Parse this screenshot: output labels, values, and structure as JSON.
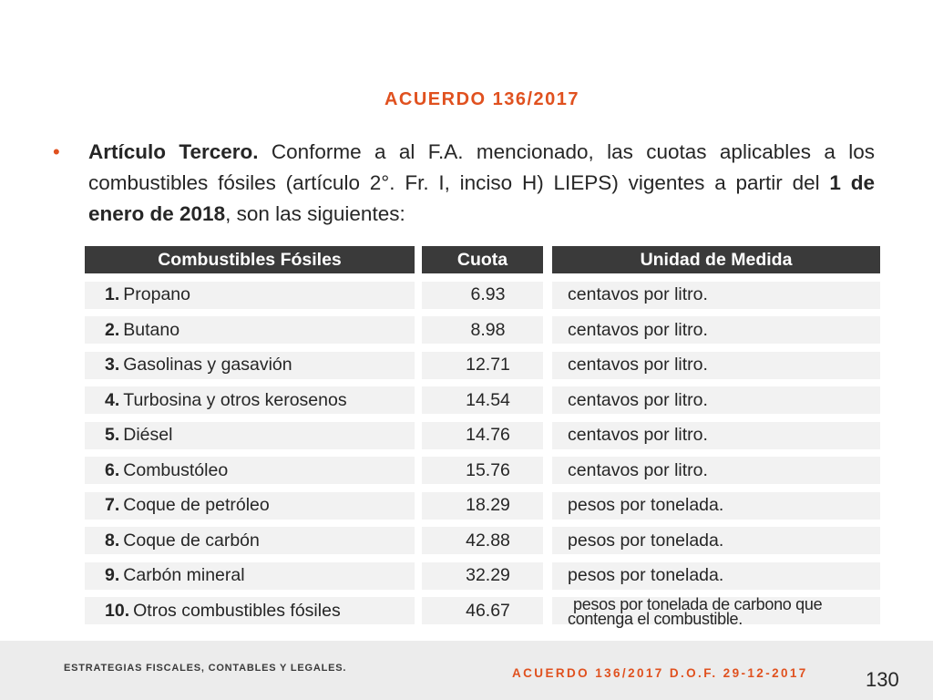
{
  "slide": {
    "title": "ACUERDO 136/2017",
    "bullet": {
      "lead_bold": "Artículo Tercero.",
      "text_1": " Conforme a al F.A. mencionado, las cuotas aplicables a los combustibles fósiles (artículo 2°. Fr. I, inciso H) LIEPS) vigentes a partir del ",
      "date_bold": "1 de enero de 2018",
      "text_2": ", son las siguientes:"
    }
  },
  "table": {
    "headers": [
      "Combustibles Fósiles",
      "Cuota",
      "Unidad de Medida"
    ],
    "rows": [
      {
        "num": "1.",
        "fuel": "Propano",
        "cuota": "6.93",
        "unidad": "centavos por litro."
      },
      {
        "num": "2.",
        "fuel": "Butano",
        "cuota": "8.98",
        "unidad": "centavos por litro."
      },
      {
        "num": "3.",
        "fuel": "Gasolinas y gasavión",
        "cuota": "12.71",
        "unidad": "centavos por litro."
      },
      {
        "num": "4.",
        "fuel": "Turbosina y otros kerosenos",
        "cuota": "14.54",
        "unidad": "centavos por litro."
      },
      {
        "num": "5.",
        "fuel": "Diésel",
        "cuota": "14.76",
        "unidad": "centavos por litro."
      },
      {
        "num": "6.",
        "fuel": "Combustóleo",
        "cuota": "15.76",
        "unidad": "centavos por litro."
      },
      {
        "num": "7.",
        "fuel": "Coque de petróleo",
        "cuota": "18.29",
        "unidad": "pesos por tonelada."
      },
      {
        "num": "8.",
        "fuel": "Coque de carbón",
        "cuota": "42.88",
        "unidad": "pesos por tonelada."
      },
      {
        "num": "9.",
        "fuel": "Carbón mineral",
        "cuota": "32.29",
        "unidad": "pesos por tonelada."
      },
      {
        "num": "10.",
        "fuel": "Otros combustibles fósiles",
        "cuota": "46.67",
        "unidad_line1": "pesos por tonelada de carbono que",
        "unidad_line2": "contenga el combustible."
      }
    ]
  },
  "footer": {
    "left": "ESTRATEGIAS FISCALES, CONTABLES Y LEGALES.",
    "right": "ACUERDO 136/2017 D.O.F. 29-12-2017",
    "page_number": "130"
  },
  "colors": {
    "accent": "#e0511f",
    "header_bg": "#3a3a3a",
    "row_bg": "#f2f2f2",
    "footer_bg": "#ececec"
  }
}
